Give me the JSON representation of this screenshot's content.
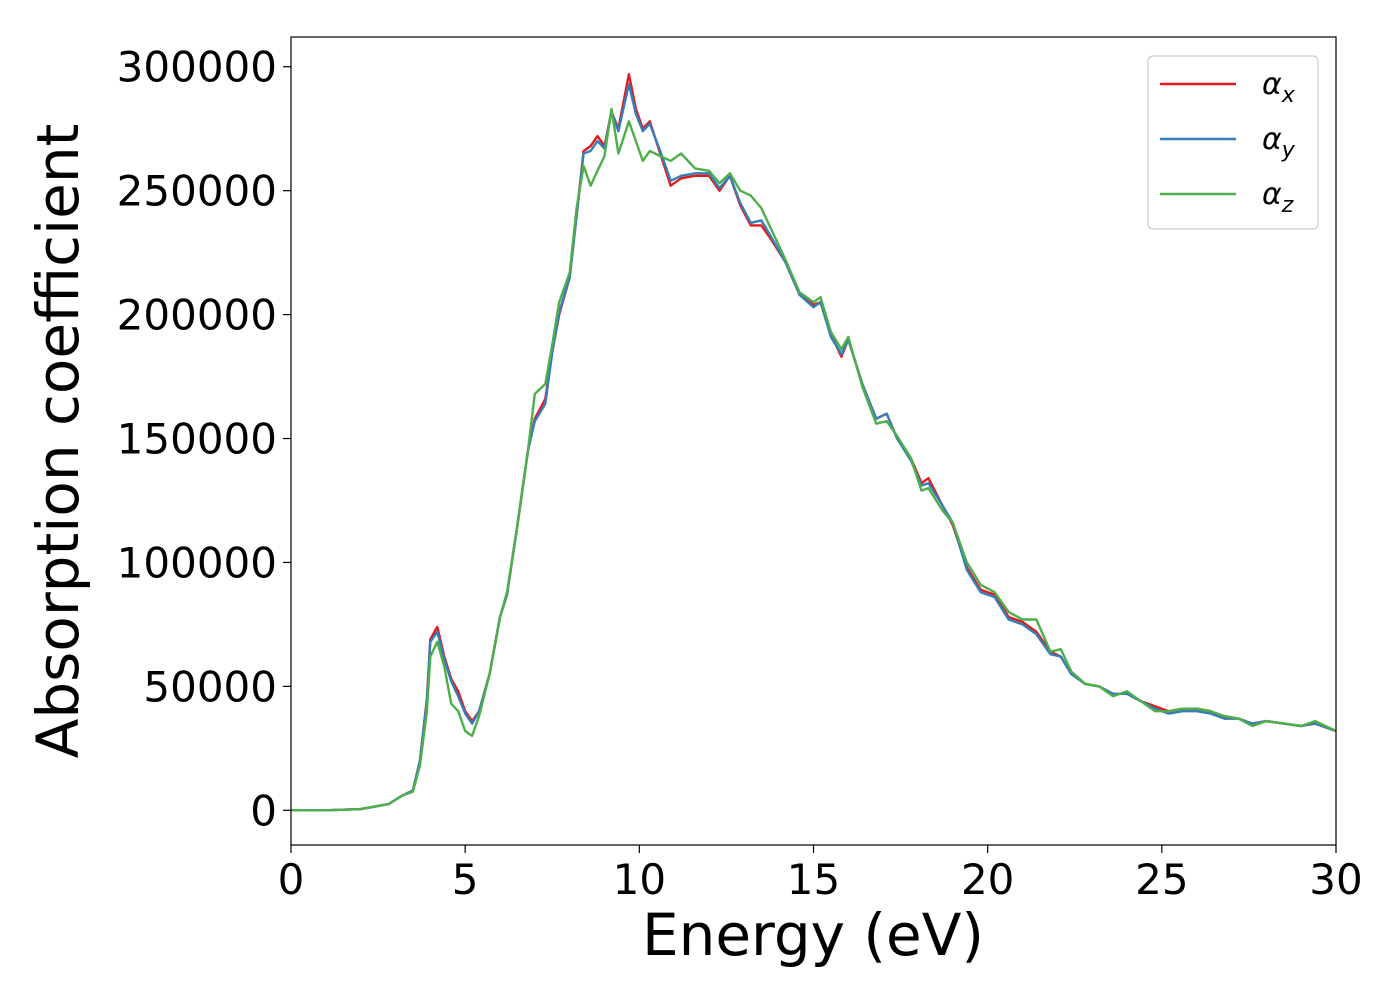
{
  "chart_data": {
    "type": "line",
    "title": "",
    "xlabel": "Energy (eV)",
    "ylabel": "Absorption coefficient",
    "xlim": [
      0,
      30
    ],
    "ylim": [
      -14000,
      312000
    ],
    "xticks": [
      0,
      5,
      10,
      15,
      20,
      25,
      30
    ],
    "xtick_labels": [
      "0",
      "5",
      "10",
      "15",
      "20",
      "25",
      "30"
    ],
    "yticks": [
      0,
      50000,
      100000,
      150000,
      200000,
      250000,
      300000
    ],
    "ytick_labels": [
      "0",
      "50000",
      "100000",
      "150000",
      "200000",
      "250000",
      "300000"
    ],
    "grid": false,
    "legend": "top-right",
    "series": [
      {
        "name": "αx",
        "base": "α",
        "sub": "x",
        "color": "#e41a1c",
        "points": [
          [
            0,
            0
          ],
          [
            1,
            0
          ],
          [
            2,
            500
          ],
          [
            2.8,
            2500
          ],
          [
            3.2,
            6000
          ],
          [
            3.5,
            8000
          ],
          [
            3.7,
            20000
          ],
          [
            3.9,
            45000
          ],
          [
            4.0,
            69000
          ],
          [
            4.2,
            74000
          ],
          [
            4.4,
            62000
          ],
          [
            4.6,
            53000
          ],
          [
            4.8,
            48000
          ],
          [
            5.0,
            40000
          ],
          [
            5.2,
            36000
          ],
          [
            5.4,
            40000
          ],
          [
            5.7,
            55000
          ],
          [
            6.0,
            78000
          ],
          [
            6.2,
            87000
          ],
          [
            6.5,
            115000
          ],
          [
            6.8,
            145000
          ],
          [
            7.0,
            158000
          ],
          [
            7.3,
            166000
          ],
          [
            7.5,
            185000
          ],
          [
            7.7,
            200000
          ],
          [
            8.0,
            215000
          ],
          [
            8.2,
            240000
          ],
          [
            8.4,
            266000
          ],
          [
            8.6,
            268000
          ],
          [
            8.8,
            272000
          ],
          [
            9.0,
            268000
          ],
          [
            9.2,
            282000
          ],
          [
            9.4,
            275000
          ],
          [
            9.7,
            297000
          ],
          [
            9.9,
            283000
          ],
          [
            10.1,
            275000
          ],
          [
            10.3,
            278000
          ],
          [
            10.6,
            265000
          ],
          [
            10.9,
            252000
          ],
          [
            11.2,
            255000
          ],
          [
            11.6,
            256000
          ],
          [
            12.0,
            256000
          ],
          [
            12.3,
            250000
          ],
          [
            12.6,
            256000
          ],
          [
            12.9,
            244000
          ],
          [
            13.2,
            236000
          ],
          [
            13.5,
            236000
          ],
          [
            13.8,
            230000
          ],
          [
            14.2,
            221000
          ],
          [
            14.6,
            208000
          ],
          [
            15.0,
            204000
          ],
          [
            15.2,
            205000
          ],
          [
            15.5,
            192000
          ],
          [
            15.8,
            183000
          ],
          [
            16.0,
            190000
          ],
          [
            16.4,
            172000
          ],
          [
            16.8,
            158000
          ],
          [
            17.1,
            160000
          ],
          [
            17.4,
            150000
          ],
          [
            17.8,
            142000
          ],
          [
            18.1,
            132000
          ],
          [
            18.3,
            134000
          ],
          [
            18.7,
            123000
          ],
          [
            19.0,
            115000
          ],
          [
            19.4,
            98000
          ],
          [
            19.8,
            89000
          ],
          [
            20.2,
            87000
          ],
          [
            20.6,
            78000
          ],
          [
            21.0,
            76000
          ],
          [
            21.4,
            72000
          ],
          [
            21.8,
            64000
          ],
          [
            22.1,
            62000
          ],
          [
            22.4,
            55000
          ],
          [
            22.8,
            51000
          ],
          [
            23.2,
            50000
          ],
          [
            23.6,
            47000
          ],
          [
            24.0,
            47000
          ],
          [
            24.4,
            44000
          ],
          [
            24.8,
            42000
          ],
          [
            25.2,
            40000
          ],
          [
            25.6,
            41000
          ],
          [
            26.0,
            41000
          ],
          [
            26.4,
            40000
          ],
          [
            26.8,
            37000
          ],
          [
            27.2,
            37000
          ],
          [
            27.6,
            35000
          ],
          [
            28.0,
            36000
          ],
          [
            28.5,
            35000
          ],
          [
            29.0,
            34000
          ],
          [
            29.4,
            35000
          ],
          [
            30.0,
            32000
          ]
        ]
      },
      {
        "name": "αy",
        "base": "α",
        "sub": "y",
        "color": "#377eb8",
        "points": [
          [
            0,
            0
          ],
          [
            1,
            0
          ],
          [
            2,
            500
          ],
          [
            2.8,
            2500
          ],
          [
            3.2,
            6000
          ],
          [
            3.5,
            8000
          ],
          [
            3.7,
            20000
          ],
          [
            3.9,
            44000
          ],
          [
            4.0,
            68000
          ],
          [
            4.2,
            72000
          ],
          [
            4.4,
            61000
          ],
          [
            4.6,
            52000
          ],
          [
            4.8,
            46000
          ],
          [
            5.0,
            39000
          ],
          [
            5.2,
            35000
          ],
          [
            5.4,
            40000
          ],
          [
            5.7,
            55000
          ],
          [
            6.0,
            78000
          ],
          [
            6.2,
            87000
          ],
          [
            6.5,
            115000
          ],
          [
            6.8,
            145000
          ],
          [
            7.0,
            157000
          ],
          [
            7.3,
            164000
          ],
          [
            7.5,
            185000
          ],
          [
            7.7,
            201000
          ],
          [
            8.0,
            215000
          ],
          [
            8.2,
            240000
          ],
          [
            8.4,
            265000
          ],
          [
            8.6,
            266000
          ],
          [
            8.8,
            270000
          ],
          [
            9.0,
            267000
          ],
          [
            9.2,
            282000
          ],
          [
            9.4,
            274000
          ],
          [
            9.7,
            293000
          ],
          [
            9.9,
            281000
          ],
          [
            10.1,
            274000
          ],
          [
            10.3,
            277000
          ],
          [
            10.6,
            266000
          ],
          [
            10.9,
            254000
          ],
          [
            11.2,
            256000
          ],
          [
            11.6,
            257000
          ],
          [
            12.0,
            257000
          ],
          [
            12.3,
            251000
          ],
          [
            12.6,
            256000
          ],
          [
            12.9,
            245000
          ],
          [
            13.2,
            237000
          ],
          [
            13.5,
            238000
          ],
          [
            13.8,
            231000
          ],
          [
            14.2,
            221000
          ],
          [
            14.6,
            208000
          ],
          [
            15.0,
            203000
          ],
          [
            15.2,
            205000
          ],
          [
            15.5,
            191000
          ],
          [
            15.8,
            184000
          ],
          [
            16.0,
            190000
          ],
          [
            16.4,
            172000
          ],
          [
            16.8,
            158000
          ],
          [
            17.1,
            160000
          ],
          [
            17.4,
            150000
          ],
          [
            17.8,
            141000
          ],
          [
            18.1,
            131000
          ],
          [
            18.3,
            132000
          ],
          [
            18.7,
            123000
          ],
          [
            19.0,
            116000
          ],
          [
            19.4,
            97000
          ],
          [
            19.8,
            88000
          ],
          [
            20.2,
            86000
          ],
          [
            20.6,
            77000
          ],
          [
            21.0,
            75000
          ],
          [
            21.4,
            71000
          ],
          [
            21.8,
            63000
          ],
          [
            22.1,
            62000
          ],
          [
            22.4,
            55000
          ],
          [
            22.8,
            51000
          ],
          [
            23.2,
            50000
          ],
          [
            23.6,
            47000
          ],
          [
            24.0,
            47000
          ],
          [
            24.4,
            44000
          ],
          [
            24.8,
            41000
          ],
          [
            25.2,
            39000
          ],
          [
            25.6,
            40000
          ],
          [
            26.0,
            40000
          ],
          [
            26.4,
            39000
          ],
          [
            26.8,
            37000
          ],
          [
            27.2,
            37000
          ],
          [
            27.6,
            35000
          ],
          [
            28.0,
            36000
          ],
          [
            28.5,
            35000
          ],
          [
            29.0,
            34000
          ],
          [
            29.4,
            35000
          ],
          [
            30.0,
            32000
          ]
        ]
      },
      {
        "name": "αz",
        "base": "α",
        "sub": "z",
        "color": "#4daf4a",
        "points": [
          [
            0,
            0
          ],
          [
            1,
            0
          ],
          [
            2,
            500
          ],
          [
            2.8,
            2500
          ],
          [
            3.2,
            6000
          ],
          [
            3.5,
            7500
          ],
          [
            3.7,
            18000
          ],
          [
            3.9,
            40000
          ],
          [
            4.0,
            62000
          ],
          [
            4.2,
            68000
          ],
          [
            4.4,
            58000
          ],
          [
            4.6,
            43000
          ],
          [
            4.8,
            40000
          ],
          [
            5.0,
            32000
          ],
          [
            5.2,
            30000
          ],
          [
            5.4,
            38000
          ],
          [
            5.7,
            55000
          ],
          [
            6.0,
            78000
          ],
          [
            6.2,
            88000
          ],
          [
            6.5,
            115000
          ],
          [
            6.8,
            145000
          ],
          [
            7.0,
            168000
          ],
          [
            7.3,
            172000
          ],
          [
            7.5,
            188000
          ],
          [
            7.7,
            205000
          ],
          [
            8.0,
            217000
          ],
          [
            8.2,
            243000
          ],
          [
            8.4,
            260000
          ],
          [
            8.6,
            252000
          ],
          [
            8.8,
            258000
          ],
          [
            9.0,
            264000
          ],
          [
            9.2,
            283000
          ],
          [
            9.4,
            265000
          ],
          [
            9.7,
            278000
          ],
          [
            9.9,
            270000
          ],
          [
            10.1,
            262000
          ],
          [
            10.3,
            266000
          ],
          [
            10.6,
            264000
          ],
          [
            10.9,
            262000
          ],
          [
            11.2,
            265000
          ],
          [
            11.6,
            259000
          ],
          [
            12.0,
            258000
          ],
          [
            12.3,
            253000
          ],
          [
            12.6,
            257000
          ],
          [
            12.9,
            250000
          ],
          [
            13.2,
            248000
          ],
          [
            13.5,
            243000
          ],
          [
            13.8,
            234000
          ],
          [
            14.2,
            222000
          ],
          [
            14.6,
            209000
          ],
          [
            15.0,
            205000
          ],
          [
            15.2,
            207000
          ],
          [
            15.5,
            193000
          ],
          [
            15.8,
            186000
          ],
          [
            16.0,
            191000
          ],
          [
            16.4,
            171000
          ],
          [
            16.8,
            156000
          ],
          [
            17.1,
            157000
          ],
          [
            17.4,
            151000
          ],
          [
            17.8,
            142000
          ],
          [
            18.1,
            129000
          ],
          [
            18.3,
            130000
          ],
          [
            18.7,
            121000
          ],
          [
            19.0,
            116000
          ],
          [
            19.4,
            100000
          ],
          [
            19.8,
            91000
          ],
          [
            20.2,
            88000
          ],
          [
            20.6,
            80000
          ],
          [
            21.0,
            77000
          ],
          [
            21.4,
            77000
          ],
          [
            21.8,
            64000
          ],
          [
            22.1,
            65000
          ],
          [
            22.4,
            56000
          ],
          [
            22.8,
            51000
          ],
          [
            23.2,
            50000
          ],
          [
            23.6,
            46000
          ],
          [
            24.0,
            48000
          ],
          [
            24.4,
            44000
          ],
          [
            24.8,
            40000
          ],
          [
            25.2,
            40000
          ],
          [
            25.6,
            41000
          ],
          [
            26.0,
            41000
          ],
          [
            26.4,
            40000
          ],
          [
            26.8,
            38000
          ],
          [
            27.2,
            37000
          ],
          [
            27.6,
            34000
          ],
          [
            28.0,
            36000
          ],
          [
            28.5,
            35000
          ],
          [
            29.0,
            34000
          ],
          [
            29.4,
            36000
          ],
          [
            30.0,
            32000
          ]
        ]
      }
    ]
  }
}
